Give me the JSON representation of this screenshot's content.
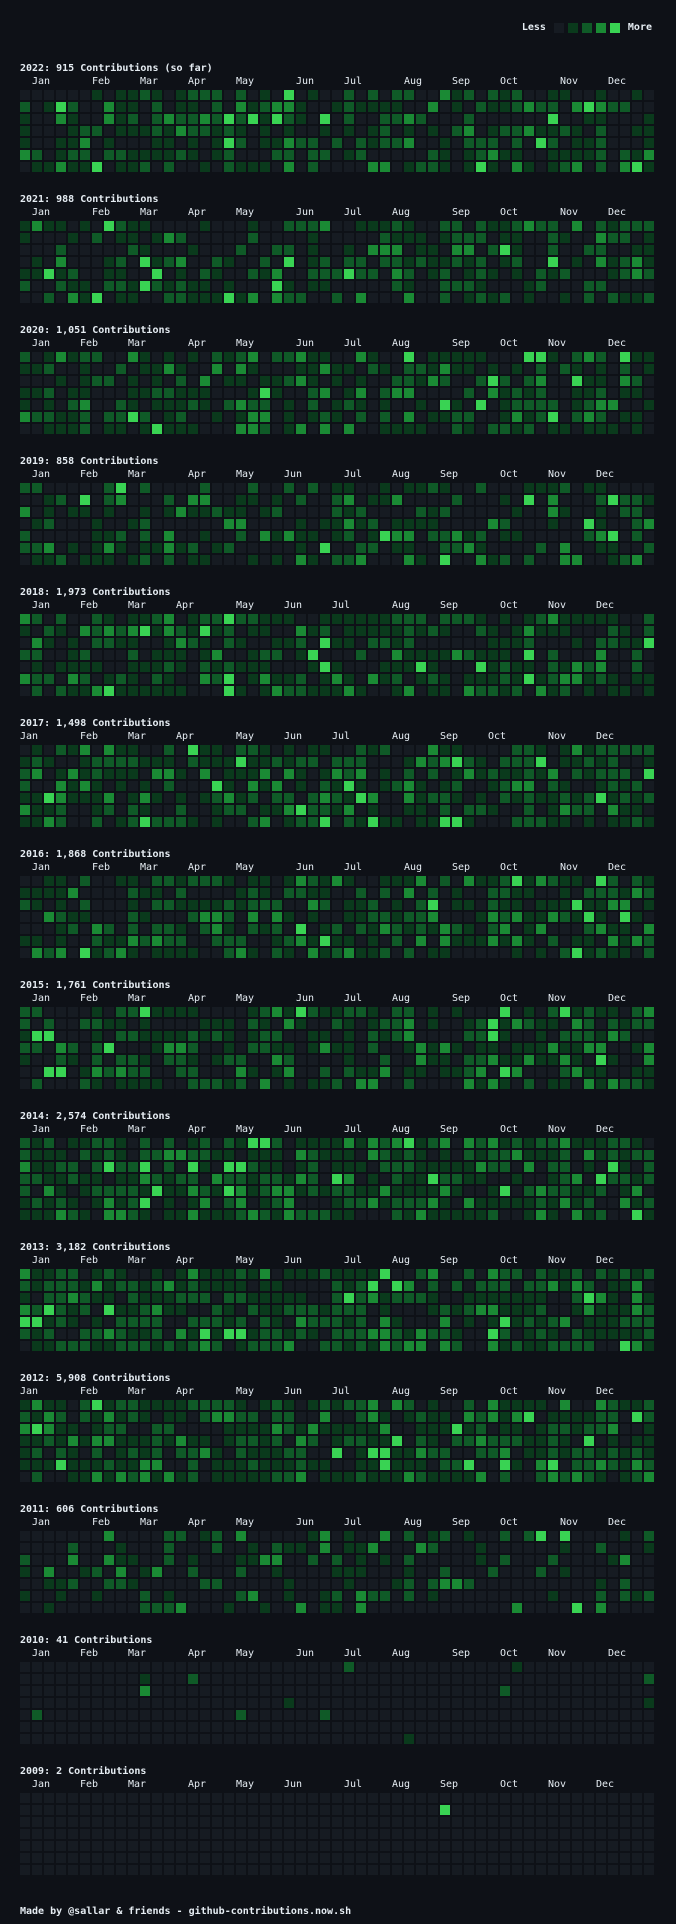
{
  "legend": {
    "less_label": "Less",
    "more_label": "More",
    "colors": [
      "#161b22",
      "#0a3a1c",
      "#0f5a27",
      "#1a8a34",
      "#39d353"
    ]
  },
  "years": [
    {
      "title": "2022: 915 Contributions (so far)",
      "months": [
        "Jan",
        "Feb",
        "Mar",
        "Apr",
        "May",
        "Jun",
        "Jul",
        "Aug",
        "Sep",
        "Oct",
        "Nov",
        "Dec"
      ],
      "month_weeks": [
        1,
        6,
        10,
        14,
        18,
        23,
        27,
        32,
        36,
        40,
        45,
        49
      ],
      "seed": 2022,
      "density": 0.62
    },
    {
      "title": "2021: 988 Contributions",
      "months": [
        "Jan",
        "Feb",
        "Mar",
        "Apr",
        "May",
        "Jun",
        "Jul",
        "Aug",
        "Sep",
        "Oct",
        "Nov",
        "Dec"
      ],
      "month_weeks": [
        1,
        6,
        10,
        14,
        18,
        23,
        27,
        31,
        36,
        40,
        45,
        49
      ],
      "seed": 2021,
      "density": 0.55
    },
    {
      "title": "2020: 1,051 Contributions",
      "months": [
        "Jan",
        "Feb",
        "Mar",
        "Apr",
        "May",
        "Jun",
        "Jul",
        "Aug",
        "Sep",
        "Oct",
        "Nov",
        "Dec"
      ],
      "month_weeks": [
        1,
        5,
        9,
        14,
        18,
        23,
        27,
        31,
        36,
        40,
        44,
        49
      ],
      "seed": 2020,
      "density": 0.6
    },
    {
      "title": "2019: 858 Contributions",
      "months": [
        "Jan",
        "Feb",
        "Mar",
        "Apr",
        "May",
        "Jun",
        "Jul",
        "Aug",
        "Sep",
        "Oct",
        "Nov",
        "Dec"
      ],
      "month_weeks": [
        1,
        5,
        9,
        14,
        18,
        22,
        27,
        31,
        35,
        40,
        44,
        48
      ],
      "seed": 2019,
      "density": 0.55
    },
    {
      "title": "2018: 1,973 Contributions",
      "months": [
        "Jan",
        "Feb",
        "Mar",
        "Apr",
        "May",
        "Jun",
        "Jul",
        "Aug",
        "Sep",
        "Oct",
        "Nov",
        "Dec"
      ],
      "month_weeks": [
        1,
        5,
        9,
        13,
        18,
        22,
        26,
        31,
        35,
        40,
        44,
        48
      ],
      "seed": 2018,
      "density": 0.7
    },
    {
      "title": "2017: 1,498 Contributions",
      "months": [
        "Jan",
        "Feb",
        "Mar",
        "Apr",
        "May",
        "Jun",
        "Jul",
        "Aug",
        "Sep",
        "Oct",
        "Nov",
        "Dec"
      ],
      "month_weeks": [
        0,
        5,
        9,
        13,
        18,
        22,
        26,
        31,
        35,
        39,
        44,
        48
      ],
      "seed": 2017,
      "density": 0.7
    },
    {
      "title": "2016: 1,868 Contributions",
      "months": [
        "Jan",
        "Feb",
        "Mar",
        "Apr",
        "May",
        "Jun",
        "Jul",
        "Aug",
        "Sep",
        "Oct",
        "Nov",
        "Dec"
      ],
      "month_weeks": [
        1,
        6,
        10,
        14,
        18,
        23,
        27,
        32,
        36,
        40,
        45,
        49
      ],
      "seed": 2016,
      "density": 0.72
    },
    {
      "title": "2015: 1,761 Contributions",
      "months": [
        "Jan",
        "Feb",
        "Mar",
        "Apr",
        "May",
        "Jun",
        "Jul",
        "Aug",
        "Sep",
        "Oct",
        "Nov",
        "Dec"
      ],
      "month_weeks": [
        1,
        5,
        9,
        14,
        18,
        23,
        27,
        31,
        36,
        40,
        44,
        49
      ],
      "seed": 2015,
      "density": 0.65
    },
    {
      "title": "2014: 2,574 Contributions",
      "months": [
        "Jan",
        "Feb",
        "Mar",
        "Apr",
        "May",
        "Jun",
        "Jul",
        "Aug",
        "Sep",
        "Oct",
        "Nov",
        "Dec"
      ],
      "month_weeks": [
        1,
        5,
        9,
        14,
        18,
        22,
        27,
        31,
        35,
        40,
        44,
        48
      ],
      "seed": 2014,
      "density": 0.8
    },
    {
      "title": "2013: 3,182 Contributions",
      "months": [
        "Jan",
        "Feb",
        "Mar",
        "Apr",
        "May",
        "Jun",
        "Jul",
        "Aug",
        "Sep",
        "Oct",
        "Nov",
        "Dec"
      ],
      "month_weeks": [
        1,
        5,
        9,
        13,
        18,
        22,
        27,
        31,
        35,
        40,
        44,
        48
      ],
      "seed": 2013,
      "density": 0.75
    },
    {
      "title": "2012: 5,908 Contributions",
      "months": [
        "Jan",
        "Feb",
        "Mar",
        "Apr",
        "May",
        "Jun",
        "Jul",
        "Aug",
        "Sep",
        "Oct",
        "Nov",
        "Dec"
      ],
      "month_weeks": [
        0,
        5,
        9,
        13,
        18,
        22,
        26,
        31,
        35,
        40,
        44,
        48
      ],
      "seed": 2012,
      "density": 0.8
    },
    {
      "title": "2011: 606 Contributions",
      "months": [
        "Jan",
        "Feb",
        "Mar",
        "Apr",
        "May",
        "Jun",
        "Jul",
        "Aug",
        "Sep",
        "Oct",
        "Nov",
        "Dec"
      ],
      "month_weeks": [
        1,
        6,
        10,
        14,
        18,
        23,
        27,
        32,
        36,
        40,
        45,
        49
      ],
      "seed": 2011,
      "density": 0.35
    },
    {
      "title": "2010: 41 Contributions",
      "months": [
        "Jan",
        "Feb",
        "Mar",
        "Apr",
        "May",
        "Jun",
        "Jul",
        "Aug",
        "Sep",
        "Oct",
        "Nov",
        "Dec"
      ],
      "month_weeks": [
        1,
        5,
        9,
        14,
        18,
        23,
        27,
        31,
        36,
        40,
        44,
        49
      ],
      "seed": 2010,
      "density": 0.03
    },
    {
      "title": "2009: 2 Contributions",
      "months": [
        "Jan",
        "Feb",
        "Mar",
        "Apr",
        "May",
        "Jun",
        "Jul",
        "Aug",
        "Sep",
        "Oct",
        "Nov",
        "Dec"
      ],
      "month_weeks": [
        1,
        5,
        9,
        14,
        18,
        22,
        27,
        31,
        35,
        40,
        44,
        48
      ],
      "seed": 2009,
      "density": 0.0
    }
  ],
  "footer": "Made by @sallar & friends - github-contributions.now.sh"
}
